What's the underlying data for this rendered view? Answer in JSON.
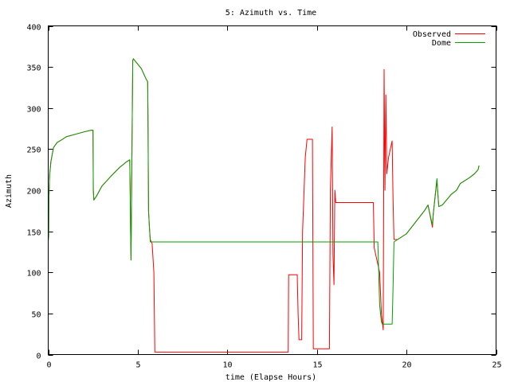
{
  "chart_data": {
    "type": "line",
    "title": "5: Azimuth vs. Time",
    "xlabel": "time (Elapse Hours)",
    "ylabel": "Azimuth",
    "xlim": [
      0,
      25
    ],
    "ylim": [
      0,
      400
    ],
    "x_ticks": [
      0,
      5,
      10,
      15,
      20,
      25
    ],
    "y_ticks": [
      0,
      50,
      100,
      150,
      200,
      250,
      300,
      350,
      400
    ],
    "grid": false,
    "legend_position": "top-right",
    "series": [
      {
        "name": "Observed",
        "color": "#ff0000",
        "points": [
          [
            0.0,
            200
          ],
          [
            0.05,
            195
          ],
          [
            0.08,
            220
          ],
          [
            0.15,
            235
          ],
          [
            0.3,
            252
          ],
          [
            0.5,
            258
          ],
          [
            0.8,
            262
          ],
          [
            1.0,
            265
          ],
          [
            1.5,
            268
          ],
          [
            2.0,
            271
          ],
          [
            2.4,
            273
          ],
          [
            2.5,
            273
          ],
          [
            2.52,
            200
          ],
          [
            2.55,
            188
          ],
          [
            2.7,
            193
          ],
          [
            3.0,
            205
          ],
          [
            3.5,
            217
          ],
          [
            4.0,
            228
          ],
          [
            4.4,
            235
          ],
          [
            4.55,
            237
          ],
          [
            4.58,
            190
          ],
          [
            4.6,
            150
          ],
          [
            4.62,
            115
          ],
          [
            4.72,
            358
          ],
          [
            4.75,
            360
          ],
          [
            5.2,
            348
          ],
          [
            5.45,
            336
          ],
          [
            5.55,
            332
          ],
          [
            5.57,
            290
          ],
          [
            5.6,
            175
          ],
          [
            5.65,
            155
          ],
          [
            5.7,
            140
          ],
          [
            5.8,
            135
          ],
          [
            5.9,
            100
          ],
          [
            5.95,
            3
          ],
          [
            13.4,
            3
          ],
          [
            13.42,
            97
          ],
          [
            13.9,
            97
          ],
          [
            13.95,
            50
          ],
          [
            14.0,
            18
          ],
          [
            14.15,
            18
          ],
          [
            14.2,
            150
          ],
          [
            14.35,
            240
          ],
          [
            14.45,
            262
          ],
          [
            14.75,
            262
          ],
          [
            14.8,
            7
          ],
          [
            15.7,
            7
          ],
          [
            15.75,
            200
          ],
          [
            15.85,
            277
          ],
          [
            15.9,
            120
          ],
          [
            15.95,
            85
          ],
          [
            16.0,
            200
          ],
          [
            16.05,
            185
          ],
          [
            16.1,
            185
          ],
          [
            16.2,
            185
          ],
          [
            18.15,
            185
          ],
          [
            18.2,
            130
          ],
          [
            18.4,
            110
          ],
          [
            18.5,
            100
          ],
          [
            18.6,
            50
          ],
          [
            18.65,
            40
          ],
          [
            18.7,
            30
          ],
          [
            18.75,
            347
          ],
          [
            18.8,
            200
          ],
          [
            18.85,
            316
          ],
          [
            18.9,
            220
          ],
          [
            19.0,
            240
          ],
          [
            19.2,
            260
          ],
          [
            19.25,
            190
          ],
          [
            19.3,
            140
          ],
          [
            19.5,
            140
          ],
          [
            20.0,
            147
          ],
          [
            21.0,
            175
          ],
          [
            21.2,
            182
          ],
          [
            21.4,
            160
          ],
          [
            21.45,
            155
          ],
          [
            21.5,
            172
          ],
          [
            21.7,
            212
          ],
          [
            21.8,
            180
          ],
          [
            22.0,
            182
          ],
          [
            22.5,
            195
          ],
          [
            22.8,
            200
          ],
          [
            23.0,
            208
          ],
          [
            23.5,
            215
          ],
          [
            23.8,
            220
          ],
          [
            24.0,
            225
          ],
          [
            24.05,
            230
          ]
        ]
      },
      {
        "name": "Dome",
        "color": "#00a000",
        "points": [
          [
            0.0,
            137
          ],
          [
            0.03,
            145
          ],
          [
            0.05,
            200
          ],
          [
            0.08,
            218
          ],
          [
            0.15,
            235
          ],
          [
            0.3,
            252
          ],
          [
            0.5,
            258
          ],
          [
            0.8,
            262
          ],
          [
            1.0,
            265
          ],
          [
            1.5,
            268
          ],
          [
            2.0,
            271
          ],
          [
            2.4,
            273
          ],
          [
            2.5,
            273
          ],
          [
            2.52,
            200
          ],
          [
            2.55,
            188
          ],
          [
            2.7,
            193
          ],
          [
            3.0,
            205
          ],
          [
            3.5,
            217
          ],
          [
            4.0,
            228
          ],
          [
            4.4,
            235
          ],
          [
            4.55,
            237
          ],
          [
            4.58,
            190
          ],
          [
            4.6,
            150
          ],
          [
            4.62,
            115
          ],
          [
            4.72,
            358
          ],
          [
            4.75,
            360
          ],
          [
            5.2,
            348
          ],
          [
            5.45,
            336
          ],
          [
            5.55,
            332
          ],
          [
            5.57,
            290
          ],
          [
            5.6,
            175
          ],
          [
            5.65,
            155
          ],
          [
            5.7,
            137
          ],
          [
            18.4,
            137
          ],
          [
            18.45,
            100
          ],
          [
            18.5,
            60
          ],
          [
            18.6,
            40
          ],
          [
            18.65,
            37
          ],
          [
            19.1,
            37
          ],
          [
            19.2,
            37
          ],
          [
            19.25,
            80
          ],
          [
            19.3,
            137
          ],
          [
            19.5,
            140
          ],
          [
            20.0,
            147
          ],
          [
            21.0,
            175
          ],
          [
            21.2,
            182
          ],
          [
            21.4,
            162
          ],
          [
            21.45,
            158
          ],
          [
            21.5,
            172
          ],
          [
            21.7,
            214
          ],
          [
            21.8,
            180
          ],
          [
            22.0,
            182
          ],
          [
            22.5,
            195
          ],
          [
            22.8,
            200
          ],
          [
            23.0,
            208
          ],
          [
            23.5,
            215
          ],
          [
            23.8,
            220
          ],
          [
            24.0,
            225
          ],
          [
            24.05,
            230
          ]
        ]
      }
    ]
  }
}
